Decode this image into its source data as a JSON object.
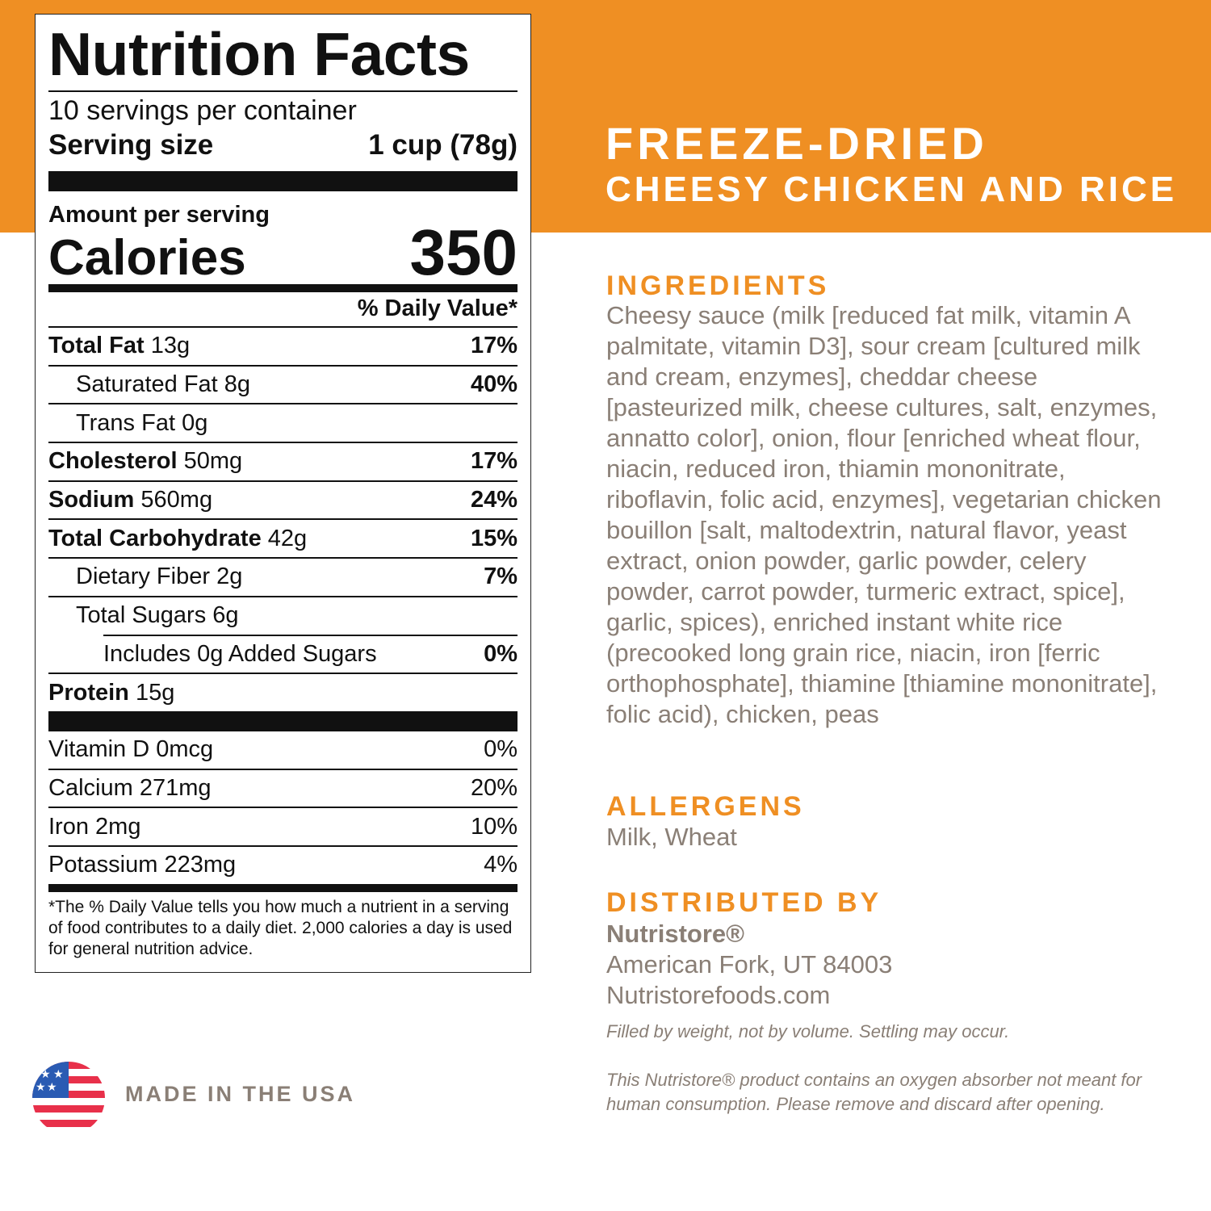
{
  "nutrition": {
    "title": "Nutrition Facts",
    "servings": "10 servings per container",
    "serving_size_label": "Serving size",
    "serving_size": "1 cup (78g)",
    "amount_per_serving": "Amount per serving",
    "calories_label": "Calories",
    "calories": 350,
    "daily_value_header": "% Daily Value*",
    "rows": [
      {
        "name": "Total Fat",
        "amount": "13g",
        "dv": "17%"
      },
      {
        "name": "Saturated Fat",
        "amount": "8g",
        "dv": "40%"
      },
      {
        "name": "Trans Fat",
        "amount": "0g"
      },
      {
        "name": "Cholesterol",
        "amount": "50mg",
        "dv": "17%"
      },
      {
        "name": "Sodium",
        "amount": "560mg",
        "dv": "24%"
      },
      {
        "name": "Total Carbohydrate",
        "amount": "42g",
        "dv": "15%"
      },
      {
        "name": "Dietary Fiber",
        "amount": "2g",
        "dv": "7%"
      },
      {
        "name": "Total Sugars",
        "amount": "6g"
      },
      {
        "name": "Includes 0g Added Sugars",
        "dv": "0%"
      },
      {
        "name": "Protein",
        "amount": "15g"
      }
    ],
    "vitamins": [
      {
        "name": "Vitamin D",
        "amount": "0mcg",
        "dv": "0%"
      },
      {
        "name": "Calcium",
        "amount": "271mg",
        "dv": "20%"
      },
      {
        "name": "Iron",
        "amount": "2mg",
        "dv": "10%"
      },
      {
        "name": "Potassium",
        "amount": "223mg",
        "dv": "4%"
      }
    ],
    "footnote": "*The % Daily Value tells you how much a nutrient in a serving of food contributes to a daily diet. 2,000 calories a day is used for general nutrition advice."
  },
  "header": {
    "line1": "FREEZE-DRIED",
    "line2": "CHEESY CHICKEN AND RICE"
  },
  "ingredients": {
    "title": "INGREDIENTS",
    "text": "Cheesy sauce (milk [reduced fat milk, vitamin A palmitate, vitamin D3], sour cream [cultured milk and cream, enzymes], cheddar cheese [pasteurized milk, cheese cultures, salt, enzymes, annatto color], onion, flour [enriched wheat flour, niacin, reduced iron, thiamin mononitrate, riboflavin, folic acid, enzymes], vegetarian chicken bouillon [salt, maltodextrin, natural flavor, yeast extract, onion powder, garlic powder, celery powder, carrot powder, turmeric extract, spice], garlic, spices), enriched instant white rice (precooked long grain rice, niacin, iron [ferric orthophosphate], thiamine [thiamine mononitrate], folic acid), chicken, peas"
  },
  "allergens": {
    "title": "ALLERGENS",
    "text": "Milk, Wheat"
  },
  "distributor": {
    "title": "DISTRIBUTED BY",
    "name": "Nutristore®",
    "address": "American Fork, UT 84003",
    "website": "Nutristorefoods.com"
  },
  "notes": [
    "Filled by weight, not by volume. Settling may occur.",
    "This Nutristore®  product contains an oxygen absorber not meant for human consumption.  Please remove and discard after opening."
  ],
  "made_in": "MADE IN THE USA"
}
